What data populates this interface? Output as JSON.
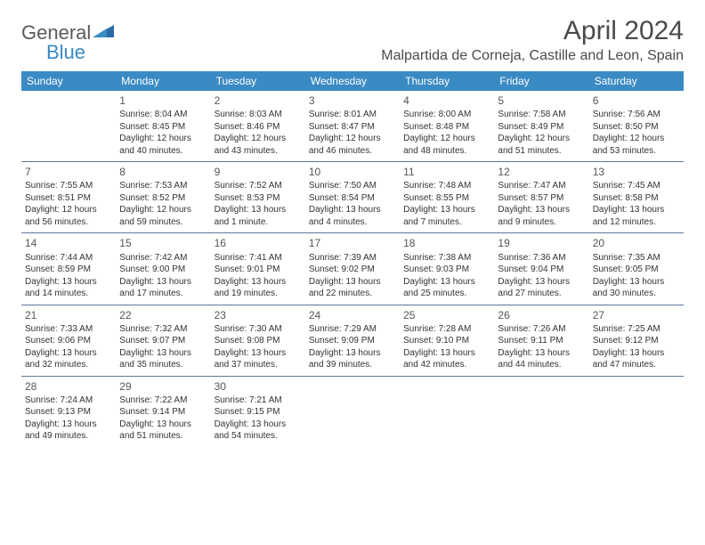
{
  "logo": {
    "text_general": "General",
    "text_blue": "Blue"
  },
  "header": {
    "month_title": "April 2024",
    "location": "Malpartida de Corneja, Castille and Leon, Spain"
  },
  "colors": {
    "header_bg": "#3a8ac4",
    "header_text": "#ffffff",
    "border": "#5a7a9a",
    "body_text": "#333333",
    "title_text": "#4a4a4a"
  },
  "weekdays": [
    "Sunday",
    "Monday",
    "Tuesday",
    "Wednesday",
    "Thursday",
    "Friday",
    "Saturday"
  ],
  "weeks": [
    [
      {
        "day": "",
        "sunrise": "",
        "sunset": "",
        "daylight": ""
      },
      {
        "day": "1",
        "sunrise": "Sunrise: 8:04 AM",
        "sunset": "Sunset: 8:45 PM",
        "daylight": "Daylight: 12 hours and 40 minutes."
      },
      {
        "day": "2",
        "sunrise": "Sunrise: 8:03 AM",
        "sunset": "Sunset: 8:46 PM",
        "daylight": "Daylight: 12 hours and 43 minutes."
      },
      {
        "day": "3",
        "sunrise": "Sunrise: 8:01 AM",
        "sunset": "Sunset: 8:47 PM",
        "daylight": "Daylight: 12 hours and 46 minutes."
      },
      {
        "day": "4",
        "sunrise": "Sunrise: 8:00 AM",
        "sunset": "Sunset: 8:48 PM",
        "daylight": "Daylight: 12 hours and 48 minutes."
      },
      {
        "day": "5",
        "sunrise": "Sunrise: 7:58 AM",
        "sunset": "Sunset: 8:49 PM",
        "daylight": "Daylight: 12 hours and 51 minutes."
      },
      {
        "day": "6",
        "sunrise": "Sunrise: 7:56 AM",
        "sunset": "Sunset: 8:50 PM",
        "daylight": "Daylight: 12 hours and 53 minutes."
      }
    ],
    [
      {
        "day": "7",
        "sunrise": "Sunrise: 7:55 AM",
        "sunset": "Sunset: 8:51 PM",
        "daylight": "Daylight: 12 hours and 56 minutes."
      },
      {
        "day": "8",
        "sunrise": "Sunrise: 7:53 AM",
        "sunset": "Sunset: 8:52 PM",
        "daylight": "Daylight: 12 hours and 59 minutes."
      },
      {
        "day": "9",
        "sunrise": "Sunrise: 7:52 AM",
        "sunset": "Sunset: 8:53 PM",
        "daylight": "Daylight: 13 hours and 1 minute."
      },
      {
        "day": "10",
        "sunrise": "Sunrise: 7:50 AM",
        "sunset": "Sunset: 8:54 PM",
        "daylight": "Daylight: 13 hours and 4 minutes."
      },
      {
        "day": "11",
        "sunrise": "Sunrise: 7:48 AM",
        "sunset": "Sunset: 8:55 PM",
        "daylight": "Daylight: 13 hours and 7 minutes."
      },
      {
        "day": "12",
        "sunrise": "Sunrise: 7:47 AM",
        "sunset": "Sunset: 8:57 PM",
        "daylight": "Daylight: 13 hours and 9 minutes."
      },
      {
        "day": "13",
        "sunrise": "Sunrise: 7:45 AM",
        "sunset": "Sunset: 8:58 PM",
        "daylight": "Daylight: 13 hours and 12 minutes."
      }
    ],
    [
      {
        "day": "14",
        "sunrise": "Sunrise: 7:44 AM",
        "sunset": "Sunset: 8:59 PM",
        "daylight": "Daylight: 13 hours and 14 minutes."
      },
      {
        "day": "15",
        "sunrise": "Sunrise: 7:42 AM",
        "sunset": "Sunset: 9:00 PM",
        "daylight": "Daylight: 13 hours and 17 minutes."
      },
      {
        "day": "16",
        "sunrise": "Sunrise: 7:41 AM",
        "sunset": "Sunset: 9:01 PM",
        "daylight": "Daylight: 13 hours and 19 minutes."
      },
      {
        "day": "17",
        "sunrise": "Sunrise: 7:39 AM",
        "sunset": "Sunset: 9:02 PM",
        "daylight": "Daylight: 13 hours and 22 minutes."
      },
      {
        "day": "18",
        "sunrise": "Sunrise: 7:38 AM",
        "sunset": "Sunset: 9:03 PM",
        "daylight": "Daylight: 13 hours and 25 minutes."
      },
      {
        "day": "19",
        "sunrise": "Sunrise: 7:36 AM",
        "sunset": "Sunset: 9:04 PM",
        "daylight": "Daylight: 13 hours and 27 minutes."
      },
      {
        "day": "20",
        "sunrise": "Sunrise: 7:35 AM",
        "sunset": "Sunset: 9:05 PM",
        "daylight": "Daylight: 13 hours and 30 minutes."
      }
    ],
    [
      {
        "day": "21",
        "sunrise": "Sunrise: 7:33 AM",
        "sunset": "Sunset: 9:06 PM",
        "daylight": "Daylight: 13 hours and 32 minutes."
      },
      {
        "day": "22",
        "sunrise": "Sunrise: 7:32 AM",
        "sunset": "Sunset: 9:07 PM",
        "daylight": "Daylight: 13 hours and 35 minutes."
      },
      {
        "day": "23",
        "sunrise": "Sunrise: 7:30 AM",
        "sunset": "Sunset: 9:08 PM",
        "daylight": "Daylight: 13 hours and 37 minutes."
      },
      {
        "day": "24",
        "sunrise": "Sunrise: 7:29 AM",
        "sunset": "Sunset: 9:09 PM",
        "daylight": "Daylight: 13 hours and 39 minutes."
      },
      {
        "day": "25",
        "sunrise": "Sunrise: 7:28 AM",
        "sunset": "Sunset: 9:10 PM",
        "daylight": "Daylight: 13 hours and 42 minutes."
      },
      {
        "day": "26",
        "sunrise": "Sunrise: 7:26 AM",
        "sunset": "Sunset: 9:11 PM",
        "daylight": "Daylight: 13 hours and 44 minutes."
      },
      {
        "day": "27",
        "sunrise": "Sunrise: 7:25 AM",
        "sunset": "Sunset: 9:12 PM",
        "daylight": "Daylight: 13 hours and 47 minutes."
      }
    ],
    [
      {
        "day": "28",
        "sunrise": "Sunrise: 7:24 AM",
        "sunset": "Sunset: 9:13 PM",
        "daylight": "Daylight: 13 hours and 49 minutes."
      },
      {
        "day": "29",
        "sunrise": "Sunrise: 7:22 AM",
        "sunset": "Sunset: 9:14 PM",
        "daylight": "Daylight: 13 hours and 51 minutes."
      },
      {
        "day": "30",
        "sunrise": "Sunrise: 7:21 AM",
        "sunset": "Sunset: 9:15 PM",
        "daylight": "Daylight: 13 hours and 54 minutes."
      },
      {
        "day": "",
        "sunrise": "",
        "sunset": "",
        "daylight": ""
      },
      {
        "day": "",
        "sunrise": "",
        "sunset": "",
        "daylight": ""
      },
      {
        "day": "",
        "sunrise": "",
        "sunset": "",
        "daylight": ""
      },
      {
        "day": "",
        "sunrise": "",
        "sunset": "",
        "daylight": ""
      }
    ]
  ]
}
